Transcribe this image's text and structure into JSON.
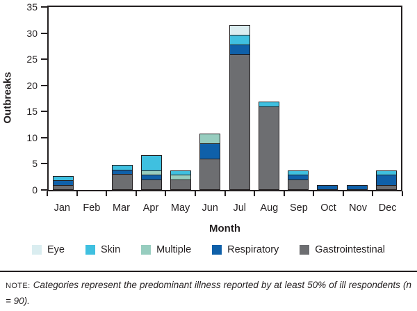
{
  "chart_data": {
    "type": "bar",
    "stacked": true,
    "xlabel": "Month",
    "ylabel": "Outbreaks",
    "ylim": [
      0,
      35
    ],
    "yticks": [
      0,
      5,
      10,
      15,
      20,
      25,
      30,
      35
    ],
    "grid": false,
    "legend_position": "bottom",
    "categories": [
      "Jan",
      "Feb",
      "Mar",
      "Apr",
      "May",
      "Jun",
      "Jul",
      "Aug",
      "Sep",
      "Oct",
      "Nov",
      "Dec"
    ],
    "series": [
      {
        "name": "Gastrointestinal",
        "color": "#6d6e71",
        "values": [
          1,
          0,
          3,
          2,
          2,
          6,
          26,
          16,
          2,
          0,
          0,
          1
        ]
      },
      {
        "name": "Respiratory",
        "color": "#0f60a9",
        "values": [
          1,
          0,
          1,
          1,
          0,
          3,
          2,
          0,
          1,
          1,
          1,
          2
        ]
      },
      {
        "name": "Multiple",
        "color": "#97cdbf",
        "values": [
          0,
          0,
          0,
          1,
          1,
          2,
          0,
          0,
          0,
          0,
          0,
          0
        ]
      },
      {
        "name": "Skin",
        "color": "#3fc0e0",
        "values": [
          1,
          0,
          1,
          3,
          1,
          0,
          2,
          1,
          1,
          0,
          0,
          1
        ]
      },
      {
        "name": "Eye",
        "color": "#daedf0",
        "values": [
          0,
          0,
          0,
          0,
          0,
          0,
          2,
          0,
          0,
          0,
          0,
          0
        ]
      }
    ],
    "legend": [
      "Eye",
      "Skin",
      "Multiple",
      "Respiratory",
      "Gastrointestinal"
    ],
    "monthly_totals": [
      3,
      0,
      5,
      7,
      4,
      11,
      32,
      17,
      4,
      1,
      1,
      4
    ],
    "segment_border_color": "#231f20",
    "axis_color": "#231f20"
  },
  "note": {
    "label": "NOTE:",
    "text": "Categories represent the predominant illness reported by at least 50% of ill respondents (n = 90)."
  }
}
